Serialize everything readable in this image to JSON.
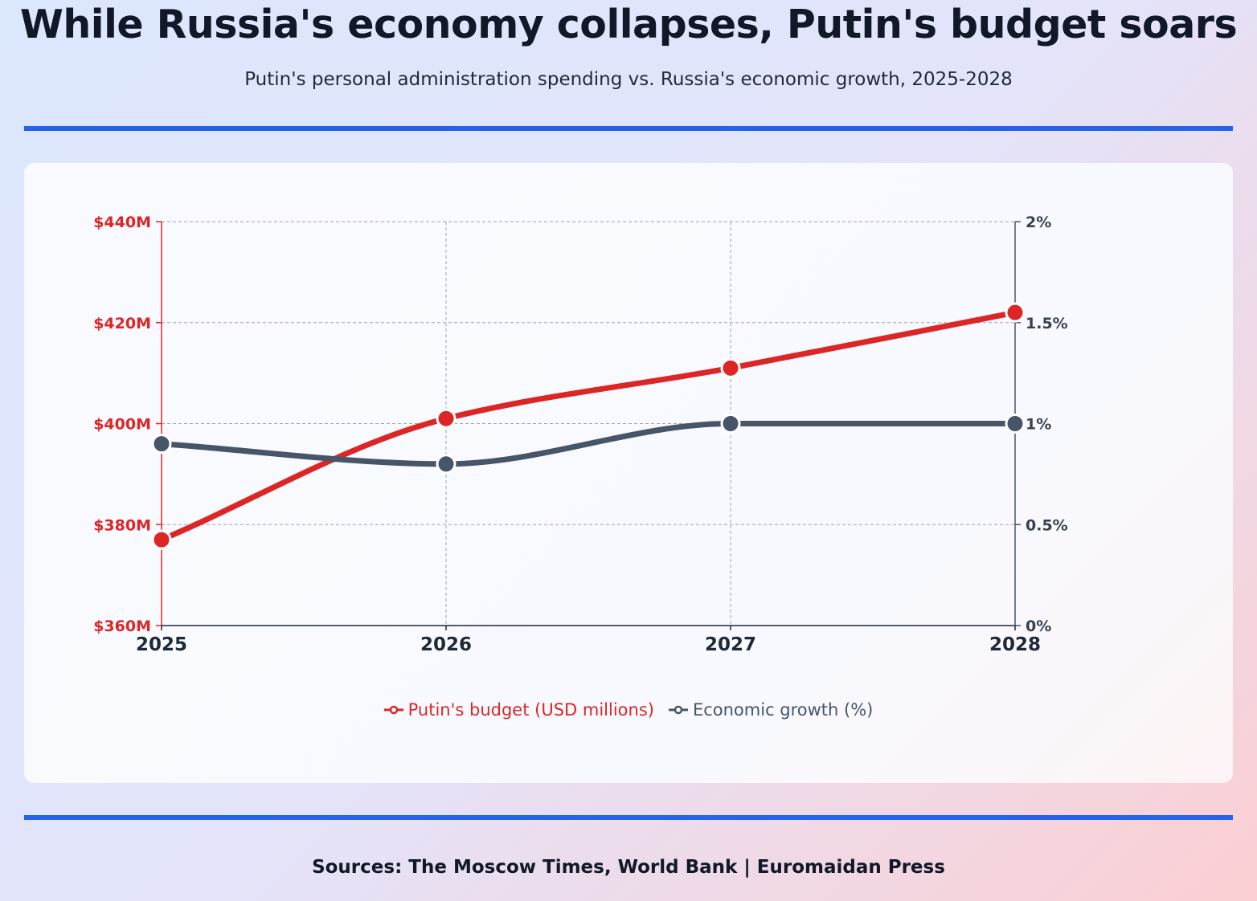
{
  "title": "While Russia's economy collapses, Putin's budget soars",
  "subtitle": "Putin's personal administration spending vs. Russia's economic growth, 2025-2028",
  "sources": "Sources: The Moscow Times, World Bank | Euromaidan Press",
  "colors": {
    "accent": "#2563eb",
    "budget": "#dc2626",
    "growth": "#475569"
  },
  "chart_data": {
    "type": "line",
    "x": [
      "2025",
      "2026",
      "2027",
      "2028"
    ],
    "grid": true,
    "legend": "bottom",
    "y_left": {
      "ylim": [
        360,
        440
      ],
      "ticks": [
        360,
        380,
        400,
        420,
        440
      ],
      "tick_labels": [
        "$360M",
        "$380M",
        "$400M",
        "$420M",
        "$440M"
      ]
    },
    "y_right": {
      "ylim": [
        0,
        2
      ],
      "ticks": [
        0,
        0.5,
        1,
        1.5,
        2
      ],
      "tick_labels": [
        "0%",
        "0.5%",
        "1%",
        "1.5%",
        "2%"
      ]
    },
    "series": [
      {
        "name": "Putin's budget (USD millions)",
        "axis": "left",
        "color": "#dc2626",
        "values": [
          377,
          401,
          411,
          422
        ]
      },
      {
        "name": "Economic growth (%)",
        "axis": "right",
        "color": "#475569",
        "values": [
          0.9,
          0.8,
          1.0,
          1.0
        ]
      }
    ]
  }
}
